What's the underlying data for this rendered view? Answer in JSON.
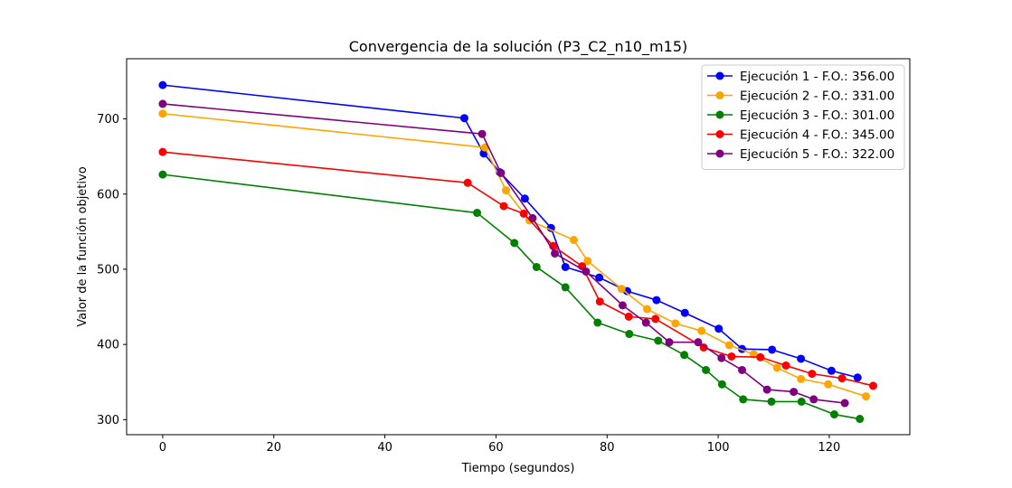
{
  "chart_data": {
    "type": "line",
    "title": "Convergencia de la solución (P3_C2_n10_m15)",
    "xlabel": "Tiempo (segundos)",
    "ylabel": "Valor de la función objetivo",
    "xlim": [
      -6.5,
      134.5
    ],
    "ylim": [
      280,
      780
    ],
    "xticks": [
      0,
      20,
      40,
      60,
      80,
      100,
      120
    ],
    "yticks": [
      300,
      400,
      500,
      600,
      700
    ],
    "grid": false,
    "legend_position": "top-right",
    "series": [
      {
        "name": "Ejecución 1 - F.O.: 356.00",
        "color": "#0000ff",
        "x": [
          0,
          54.3,
          57.8,
          60.7,
          65.2,
          69.9,
          72.5,
          78.6,
          83.6,
          88.9,
          94.0,
          100.1,
          104.3,
          109.7,
          114.9,
          120.4,
          125.1
        ],
        "y": [
          745,
          701,
          654,
          629,
          594,
          555,
          503,
          489,
          471,
          459,
          442,
          421,
          394,
          393,
          381,
          365,
          356
        ]
      },
      {
        "name": "Ejecución 2 - F.O.: 331.00",
        "color": "#ffa500",
        "x": [
          0,
          58.0,
          61.8,
          66.0,
          74.0,
          76.5,
          82.6,
          87.2,
          92.3,
          97.0,
          102.0,
          106.4,
          110.6,
          114.9,
          119.8,
          126.6
        ],
        "y": [
          707,
          662,
          605,
          565,
          539,
          511,
          474,
          447,
          428,
          418,
          399,
          387,
          369,
          354,
          347,
          331
        ]
      },
      {
        "name": "Ejecución 3 - F.O.: 301.00",
        "color": "#008000",
        "x": [
          0,
          56.6,
          63.3,
          67.3,
          72.5,
          78.3,
          84.0,
          89.2,
          93.9,
          97.8,
          100.7,
          104.5,
          109.6,
          115.0,
          120.9,
          125.5
        ],
        "y": [
          626,
          575,
          535,
          503,
          476,
          429,
          414,
          405,
          386,
          366,
          347,
          327,
          324,
          324,
          307,
          301
        ]
      },
      {
        "name": "Ejecución 4 - F.O.: 345.00",
        "color": "#ff0000",
        "x": [
          0,
          54.9,
          61.4,
          65.0,
          70.3,
          75.5,
          78.7,
          83.9,
          88.7,
          97.4,
          102.4,
          107.6,
          112.2,
          116.9,
          122.3,
          127.9
        ],
        "y": [
          656,
          615,
          584,
          574,
          531,
          504,
          457,
          437,
          434,
          396,
          384,
          383,
          372,
          361,
          355,
          345
        ]
      },
      {
        "name": "Ejecución 5 - F.O.: 322.00",
        "color": "#800080",
        "x": [
          0,
          57.5,
          60.9,
          66.6,
          70.6,
          76.2,
          82.8,
          87.0,
          91.2,
          96.4,
          100.6,
          104.3,
          108.8,
          113.6,
          117.2,
          122.8
        ],
        "y": [
          720,
          680,
          628,
          568,
          521,
          497,
          452,
          429,
          403,
          403,
          382,
          366,
          340,
          337,
          327,
          322
        ]
      }
    ]
  }
}
